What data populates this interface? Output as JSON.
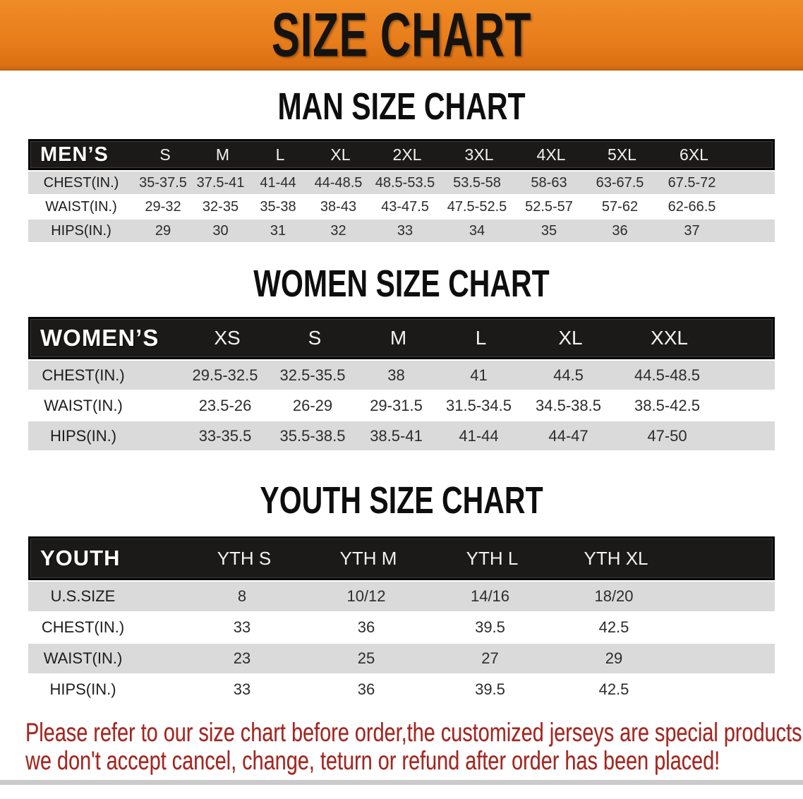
{
  "banner": {
    "title": "SIZE CHART",
    "bg_color": "#E8811E",
    "text_color": "#151310"
  },
  "sections": [
    {
      "title": "MAN SIZE CHART",
      "table": {
        "header_label": "MEN’S",
        "sizes": [
          "S",
          "M",
          "L",
          "XL",
          "2XL",
          "3XL",
          "4XL",
          "5XL",
          "6XL"
        ],
        "rows": [
          {
            "label": "CHEST(IN.)",
            "values": [
              "35-37.5",
              "37.5-41",
              "41-44",
              "44-48.5",
              "48.5-53.5",
              "53.5-58",
              "58-63",
              "63-67.5",
              "67.5-72"
            ]
          },
          {
            "label": "WAIST(IN.)",
            "values": [
              "29-32",
              "32-35",
              "35-38",
              "38-43",
              "43-47.5",
              "47.5-52.5",
              "52.5-57",
              "57-62",
              "62-66.5"
            ]
          },
          {
            "label": "HIPS(IN.)",
            "values": [
              "29",
              "30",
              "31",
              "32",
              "33",
              "34",
              "35",
              "36",
              "37"
            ]
          }
        ]
      }
    },
    {
      "title": "WOMEN SIZE CHART",
      "table": {
        "header_label": "WOMEN’S",
        "sizes": [
          "XS",
          "S",
          "M",
          "L",
          "XL",
          "XXL"
        ],
        "rows": [
          {
            "label": "CHEST(IN.)",
            "values": [
              "29.5-32.5",
              "32.5-35.5",
              "38",
              "41",
              "44.5",
              "44.5-48.5"
            ]
          },
          {
            "label": "WAIST(IN.)",
            "values": [
              "23.5-26",
              "26-29",
              "29-31.5",
              "31.5-34.5",
              "34.5-38.5",
              "38.5-42.5"
            ]
          },
          {
            "label": "HIPS(IN.)",
            "values": [
              "33-35.5",
              "35.5-38.5",
              "38.5-41",
              "41-44",
              "44-47",
              "47-50"
            ]
          }
        ]
      }
    },
    {
      "title": "YOUTH SIZE CHART",
      "table": {
        "header_label": "YOUTH",
        "sizes": [
          "YTH S",
          "YTH M",
          "YTH L",
          "YTH XL"
        ],
        "rows": [
          {
            "label": "U.S.SIZE",
            "values": [
              "8",
              "10/12",
              "14/16",
              "18/20"
            ]
          },
          {
            "label": "CHEST(IN.)",
            "values": [
              "33",
              "36",
              "39.5",
              "42.5"
            ]
          },
          {
            "label": "WAIST(IN.)",
            "values": [
              "23",
              "25",
              "27",
              "29"
            ]
          },
          {
            "label": "HIPS(IN.)",
            "values": [
              "33",
              "36",
              "39.5",
              "42.5"
            ]
          }
        ]
      }
    }
  ],
  "disclaimer": {
    "line1": "Please refer to our size chart before order,the customized jerseys are special products,",
    "line2": "we don't accept cancel, change, teturn or refund after order has been placed!",
    "color": "#A32721"
  }
}
